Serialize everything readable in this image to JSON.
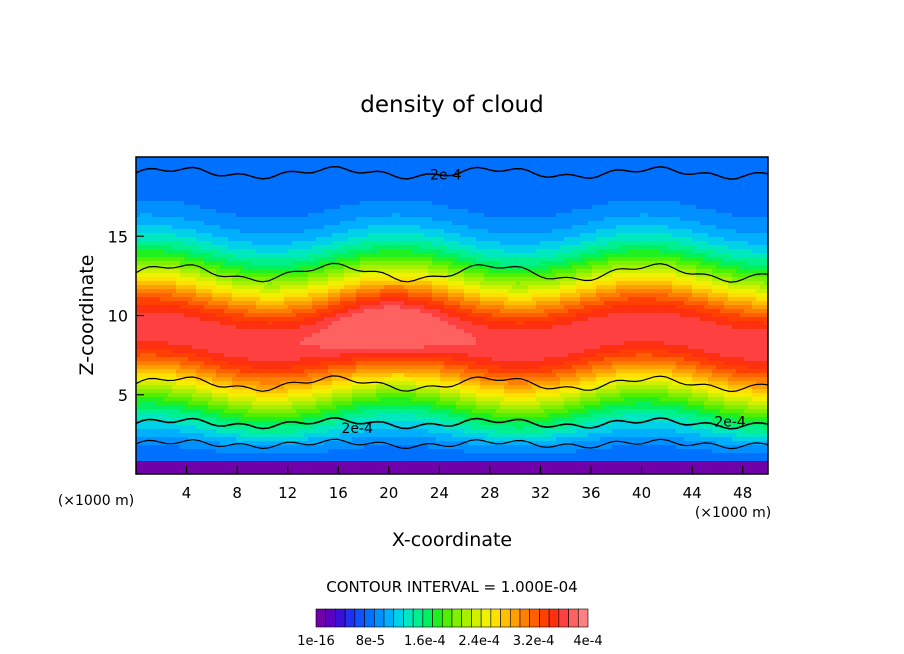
{
  "chart_data": {
    "type": "heatmap",
    "title": "density of cloud",
    "xlabel": "X-coordinate",
    "ylabel": "Z-coordinate",
    "x_unit_left": "(×1000 m)",
    "x_unit_right": "(×1000 m)",
    "xlim": [
      0,
      50
    ],
    "ylim": [
      0,
      20
    ],
    "xticks": [
      4,
      8,
      12,
      16,
      20,
      24,
      28,
      32,
      36,
      40,
      44,
      48
    ],
    "yticks": [
      5,
      10,
      15
    ],
    "contour_interval_text": "CONTOUR INTERVAL = 1.000E-04",
    "contour_labels": [
      {
        "text": "2e-4",
        "x": 24.5,
        "y": 18.9
      },
      {
        "text": "2e-4",
        "x": 17.5,
        "y": 2.9
      },
      {
        "text": "2e-4",
        "x": 47,
        "y": 3.3
      }
    ],
    "colorbar": {
      "tick_labels": [
        "1e-16",
        "8e-5",
        "1.6e-4",
        "2.4e-4",
        "3.2e-4",
        "4e-4"
      ],
      "colors": [
        "#7000a8",
        "#5a00c0",
        "#3a10d8",
        "#2030f0",
        "#1050ff",
        "#0070ff",
        "#0090ff",
        "#00b0ff",
        "#00d0e8",
        "#00e8c0",
        "#00f090",
        "#00f060",
        "#20f020",
        "#50f000",
        "#80f000",
        "#a8f000",
        "#d0f000",
        "#f0f000",
        "#ffe000",
        "#ffc000",
        "#ffa000",
        "#ff8000",
        "#ff6000",
        "#ff4000",
        "#ff3010",
        "#ff4040",
        "#ff6060",
        "#ff8080"
      ]
    }
  }
}
